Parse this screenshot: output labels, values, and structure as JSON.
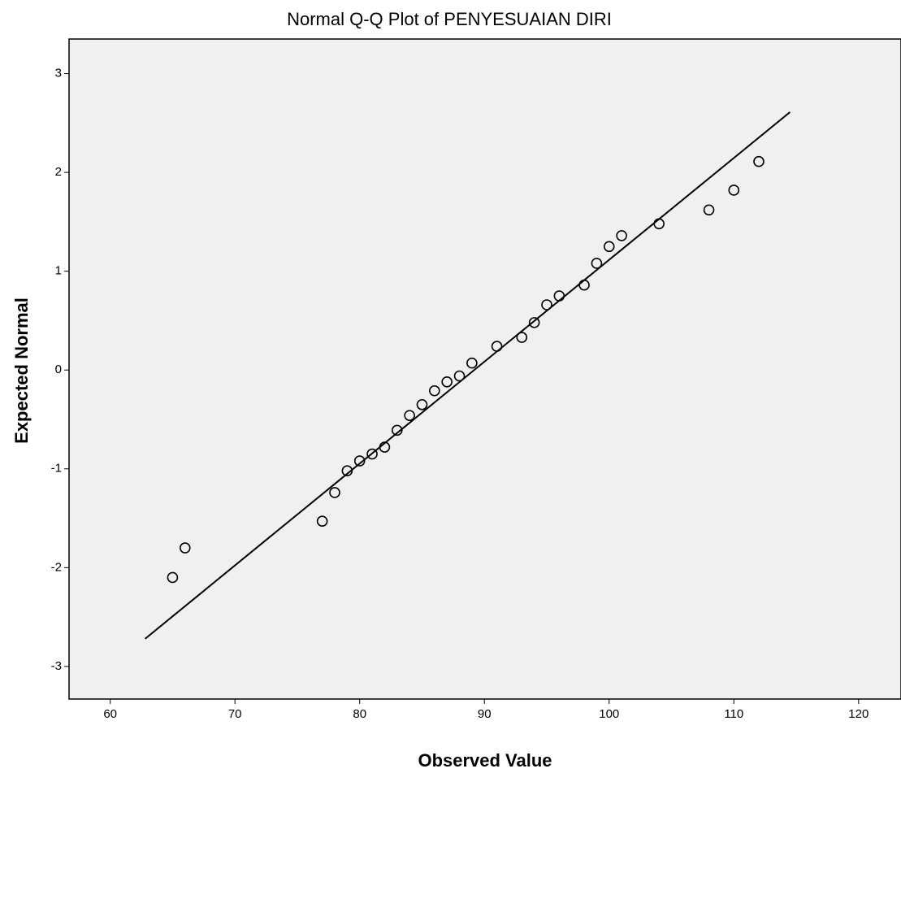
{
  "chart_data": {
    "type": "scatter",
    "title": "Normal Q-Q Plot of PENYESUAIAN DIRI",
    "x_label": "Observed Value",
    "y_label": "Expected Normal",
    "x": [
      65,
      66,
      77,
      78,
      79,
      80,
      81,
      82,
      83,
      84,
      85,
      86,
      87,
      88,
      89,
      91,
      93,
      94,
      95,
      96,
      98,
      99,
      100,
      101,
      104,
      108,
      110,
      112
    ],
    "values": [
      -2.1,
      -1.8,
      -1.53,
      -1.24,
      -1.02,
      -0.92,
      -0.85,
      -0.78,
      -0.61,
      -0.46,
      -0.35,
      -0.21,
      -0.12,
      -0.06,
      0.07,
      0.24,
      0.33,
      0.48,
      0.66,
      0.75,
      0.86,
      1.08,
      1.25,
      1.36,
      1.48,
      1.62,
      1.82,
      2.11
    ],
    "color": "#000000",
    "reference_line": {
      "x": [
        62.8,
        114.5
      ],
      "y": [
        -2.72,
        2.61
      ],
      "color": "#000000"
    },
    "xlim": [
      56.7,
      123.4
    ],
    "ylim": [
      -3.33,
      3.35
    ],
    "xticks": [
      60,
      70,
      80,
      90,
      100,
      110,
      120
    ],
    "yticks": [
      -3,
      -2,
      -1,
      0,
      1,
      2,
      3
    ],
    "plot_background": "#f0f0f0"
  }
}
